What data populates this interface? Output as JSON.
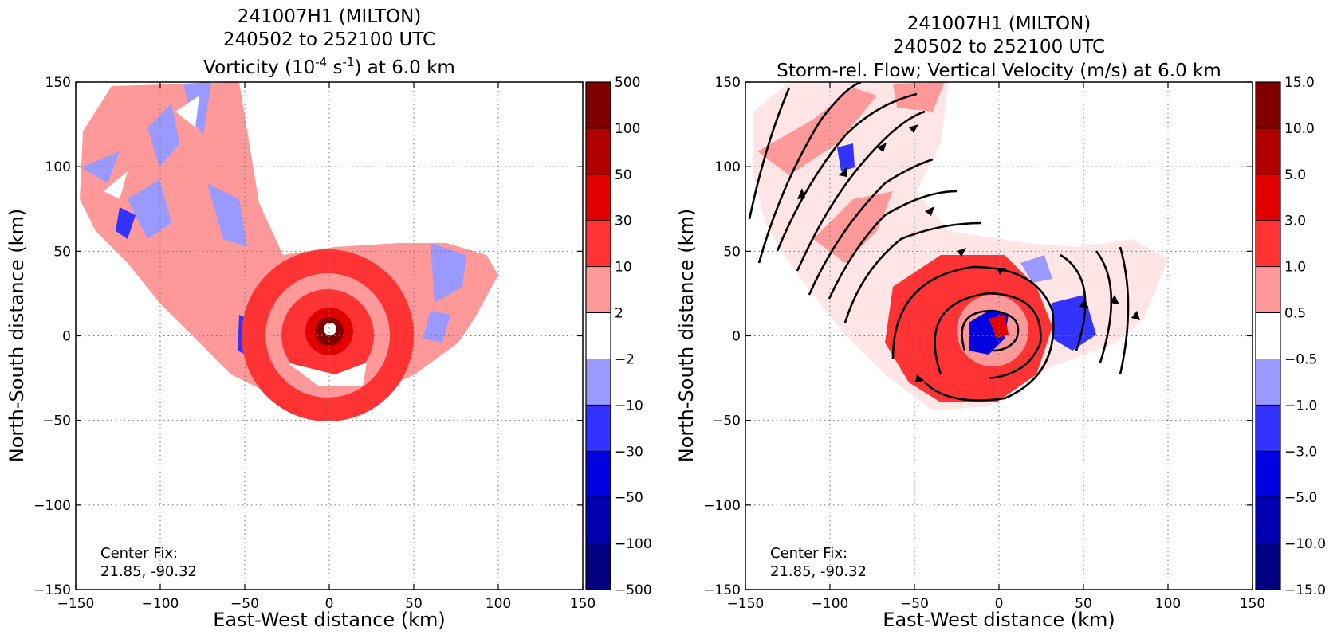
{
  "chart_data": [
    {
      "type": "heatmap",
      "title_lines": [
        "241007H1 (MILTON)",
        "240502 to 252100 UTC"
      ],
      "title_line3": {
        "pre": "Vorticity (10",
        "sup1": "-4",
        "mid": " s",
        "sup2": "-1",
        "post": ") at 6.0 km"
      },
      "xlabel": "East-West distance (km)",
      "ylabel": "North-South distance (km)",
      "xlim": [
        -150,
        150
      ],
      "ylim": [
        -150,
        150
      ],
      "xticks": [
        "−150",
        "−100",
        "−50",
        "0",
        "50",
        "100",
        "150"
      ],
      "yticks": [
        "150",
        "100",
        "50",
        "0",
        "−50",
        "−100",
        "−150"
      ],
      "grid": true,
      "center_fix": {
        "label": "Center Fix:",
        "value": "21.85, -90.32"
      },
      "colorbar": {
        "levels": [
          "500",
          "100",
          "50",
          "30",
          "10",
          "2",
          "−2",
          "−10",
          "−30",
          "−50",
          "−100",
          "−500"
        ],
        "colors": [
          "#800000",
          "#b00000",
          "#e00000",
          "#ff3333",
          "#ff9999",
          "#ffffff",
          "#9999ff",
          "#3333ff",
          "#0000e0",
          "#0000b0",
          "#000080"
        ]
      }
    },
    {
      "type": "heatmap",
      "title_lines": [
        "241007H1 (MILTON)",
        "240502 to 252100 UTC",
        "Storm-rel. Flow; Vertical Velocity (m/s) at 6.0 km"
      ],
      "xlabel": "East-West distance (km)",
      "ylabel": "North-South distance (km)",
      "xlim": [
        -150,
        150
      ],
      "ylim": [
        -150,
        150
      ],
      "xticks": [
        "−150",
        "−100",
        "−50",
        "0",
        "50",
        "100",
        "150"
      ],
      "yticks": [
        "150",
        "100",
        "50",
        "0",
        "−50",
        "−100",
        "−150"
      ],
      "grid": true,
      "center_fix": {
        "label": "Center Fix:",
        "value": "21.85, -90.32"
      },
      "colorbar": {
        "levels": [
          "15.0",
          "10.0",
          "5.0",
          "3.0",
          "1.0",
          "0.5",
          "−0.5",
          "−1.0",
          "−3.0",
          "−5.0",
          "−10.0",
          "−15.0"
        ],
        "colors": [
          "#800000",
          "#b00000",
          "#e00000",
          "#ff3333",
          "#ff9999",
          "#ffffff",
          "#9999ff",
          "#3333ff",
          "#0000e0",
          "#0000b0",
          "#000080"
        ]
      }
    }
  ]
}
